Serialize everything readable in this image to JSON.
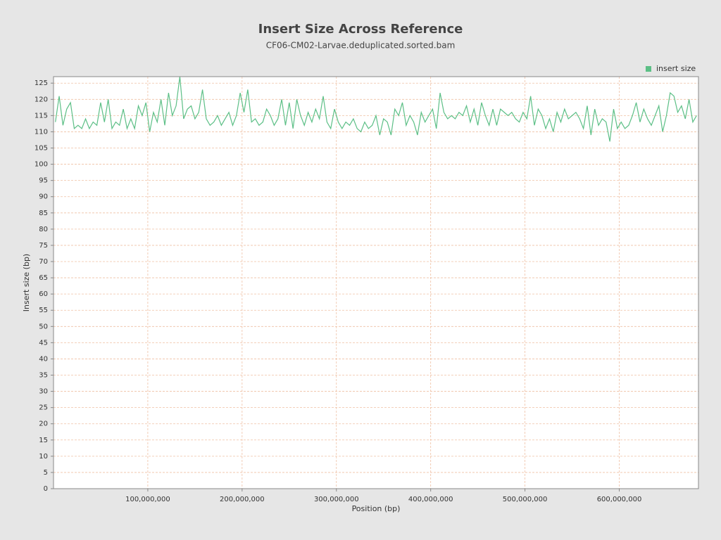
{
  "chart_data": {
    "type": "line",
    "title": "Insert Size Across Reference",
    "subtitle": "CF06-CM02-Larvae.deduplicated.sorted.bam",
    "x_label": "Position (bp)",
    "y_label": "Insert size (bp)",
    "legend": "top-right",
    "grid": true,
    "xlim": [
      0,
      684000000
    ],
    "ylim": [
      0,
      127
    ],
    "xticks": [
      {
        "value": 100000000,
        "label": "100,000,000"
      },
      {
        "value": 200000000,
        "label": "200,000,000"
      },
      {
        "value": 300000000,
        "label": "300,000,000"
      },
      {
        "value": 400000000,
        "label": "400,000,000"
      },
      {
        "value": 500000000,
        "label": "500,000,000"
      },
      {
        "value": 600000000,
        "label": "600,000,000"
      }
    ],
    "yticks": [
      0,
      5,
      10,
      15,
      20,
      25,
      30,
      35,
      40,
      45,
      50,
      55,
      60,
      65,
      70,
      75,
      80,
      85,
      90,
      95,
      100,
      105,
      110,
      115,
      120,
      125
    ],
    "x": [
      2000000,
      6000000,
      10000000,
      14000000,
      18000000,
      22000000,
      26000000,
      30000000,
      34000000,
      38000000,
      42000000,
      46000000,
      50000000,
      54000000,
      58000000,
      62000000,
      66000000,
      70000000,
      74000000,
      78000000,
      82000000,
      86000000,
      90000000,
      94000000,
      98000000,
      102000000,
      106000000,
      110000000,
      114000000,
      118000000,
      122000000,
      126000000,
      130000000,
      134000000,
      138000000,
      142000000,
      146000000,
      150000000,
      154000000,
      158000000,
      162000000,
      166000000,
      170000000,
      174000000,
      178000000,
      182000000,
      186000000,
      190000000,
      194000000,
      198000000,
      202000000,
      206000000,
      210000000,
      214000000,
      218000000,
      222000000,
      226000000,
      230000000,
      234000000,
      238000000,
      242000000,
      246000000,
      250000000,
      254000000,
      258000000,
      262000000,
      266000000,
      270000000,
      274000000,
      278000000,
      282000000,
      286000000,
      290000000,
      294000000,
      298000000,
      302000000,
      306000000,
      310000000,
      314000000,
      318000000,
      322000000,
      326000000,
      330000000,
      334000000,
      338000000,
      342000000,
      346000000,
      350000000,
      354000000,
      358000000,
      362000000,
      366000000,
      370000000,
      374000000,
      378000000,
      382000000,
      386000000,
      390000000,
      394000000,
      398000000,
      402000000,
      406000000,
      410000000,
      414000000,
      418000000,
      422000000,
      426000000,
      430000000,
      434000000,
      438000000,
      442000000,
      446000000,
      450000000,
      454000000,
      458000000,
      462000000,
      466000000,
      470000000,
      474000000,
      478000000,
      482000000,
      486000000,
      490000000,
      494000000,
      498000000,
      502000000,
      506000000,
      510000000,
      514000000,
      518000000,
      522000000,
      526000000,
      530000000,
      534000000,
      538000000,
      542000000,
      546000000,
      550000000,
      554000000,
      558000000,
      562000000,
      566000000,
      570000000,
      574000000,
      578000000,
      582000000,
      586000000,
      590000000,
      594000000,
      598000000,
      602000000,
      606000000,
      610000000,
      614000000,
      618000000,
      622000000,
      626000000,
      630000000,
      634000000,
      638000000,
      642000000,
      646000000,
      650000000,
      654000000,
      658000000,
      662000000,
      666000000,
      670000000,
      674000000,
      678000000,
      682000000
    ],
    "series": [
      {
        "name": "insert size",
        "color": "#5cbf86",
        "values": [
          113,
          121,
          112,
          117,
          119,
          111,
          112,
          111,
          114,
          111,
          113,
          112,
          119,
          113,
          120,
          111,
          113,
          112,
          117,
          111,
          114,
          111,
          118,
          115,
          119,
          110,
          116,
          113,
          120,
          112,
          122,
          115,
          118,
          127,
          114,
          117,
          118,
          114,
          116,
          123,
          114,
          112,
          113,
          115,
          112,
          114,
          116,
          112,
          115,
          122,
          116,
          123,
          113,
          114,
          112,
          113,
          117,
          115,
          112,
          114,
          120,
          112,
          119,
          111,
          120,
          115,
          112,
          116,
          113,
          117,
          114,
          121,
          113,
          111,
          117,
          113,
          111,
          113,
          112,
          114,
          111,
          110,
          113,
          111,
          112,
          115,
          109,
          114,
          113,
          109,
          117,
          115,
          119,
          112,
          115,
          113,
          109,
          116,
          113,
          115,
          117,
          111,
          122,
          116,
          114,
          115,
          114,
          116,
          115,
          118,
          113,
          117,
          112,
          119,
          115,
          112,
          117,
          112,
          117,
          116,
          115,
          116,
          114,
          113,
          116,
          114,
          121,
          112,
          117,
          115,
          111,
          114,
          110,
          116,
          113,
          117,
          114,
          115,
          116,
          114,
          111,
          118,
          109,
          117,
          112,
          114,
          113,
          107,
          117,
          111,
          113,
          111,
          112,
          115,
          119,
          113,
          117,
          114,
          112,
          115,
          118,
          110,
          115,
          122,
          121,
          116,
          118,
          114,
          120,
          113,
          115
        ]
      }
    ]
  }
}
